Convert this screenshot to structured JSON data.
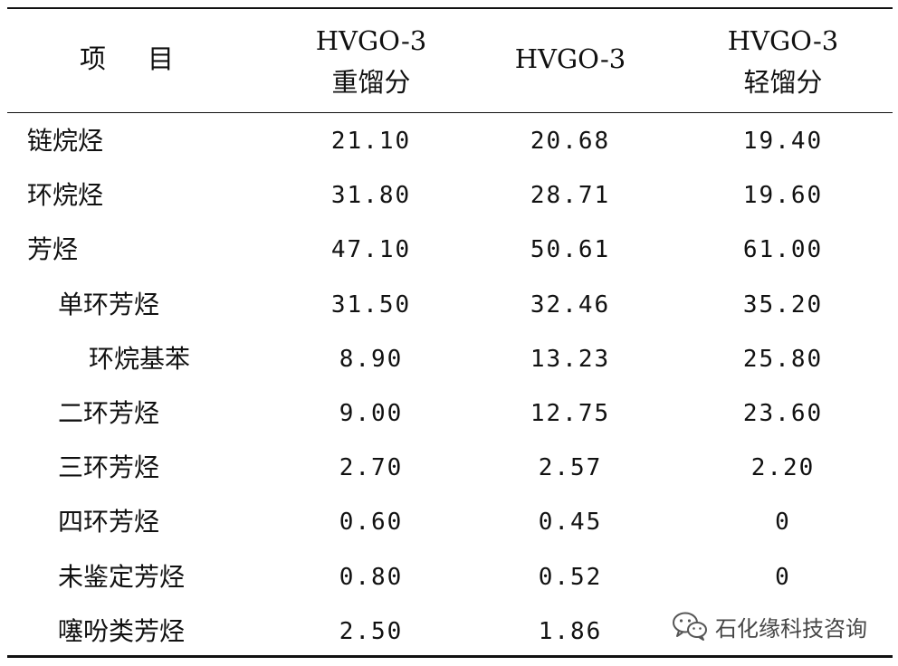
{
  "table": {
    "headers": {
      "item": [
        "项",
        "目"
      ],
      "col1": [
        "HVGO-3",
        "重馏分"
      ],
      "col2": [
        "HVGO-3"
      ],
      "col3": [
        "HVGO-3",
        "轻馏分"
      ]
    },
    "rows": [
      {
        "label": "链烷烃",
        "indent": 0,
        "values": [
          "21.10",
          "20.68",
          "19.40"
        ]
      },
      {
        "label": "环烷烃",
        "indent": 0,
        "values": [
          "31.80",
          "28.71",
          "19.60"
        ]
      },
      {
        "label": "芳烃",
        "indent": 0,
        "values": [
          "47.10",
          "50.61",
          "61.00"
        ]
      },
      {
        "label": "单环芳烃",
        "indent": 1,
        "values": [
          "31.50",
          "32.46",
          "35.20"
        ]
      },
      {
        "label": "环烷基苯",
        "indent": 2,
        "values": [
          "8.90",
          "13.23",
          "25.80"
        ]
      },
      {
        "label": "二环芳烃",
        "indent": 1,
        "values": [
          "9.00",
          "12.75",
          "23.60"
        ]
      },
      {
        "label": "三环芳烃",
        "indent": 1,
        "values": [
          "2.70",
          "2.57",
          "2.20"
        ]
      },
      {
        "label": "四环芳烃",
        "indent": 1,
        "values": [
          "0.60",
          "0.45",
          "0"
        ]
      },
      {
        "label": "未鉴定芳烃",
        "indent": 1,
        "values": [
          "0.80",
          "0.52",
          "0"
        ]
      },
      {
        "label": "噻吩类芳烃",
        "indent": 1,
        "values": [
          "2.50",
          "1.86",
          ""
        ]
      }
    ]
  },
  "watermark": {
    "text": "石化缘科技咨询",
    "icon": "wechat-icon"
  }
}
